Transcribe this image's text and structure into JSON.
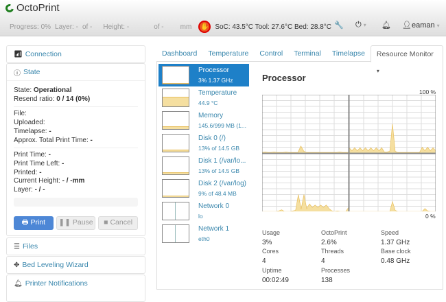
{
  "navbar": {
    "brand": "OctoPrint",
    "progress": "Progress: 0%",
    "layer": "Layer: -",
    "layer_of": "of -",
    "height": "Height: -",
    "height_of": "of -",
    "height_unit": "mm",
    "temps": "SoC: 43.5°C Tool: 27.6°C Bed: 28.8°C",
    "user": "eaman",
    "icons": [
      "stop-hand-icon",
      "wrench-icon",
      "power-icon",
      "bell-icon",
      "user-icon"
    ]
  },
  "sidebar": {
    "connection": "Connection",
    "state": "State",
    "state_label": "State: ",
    "state_value": "Operational",
    "resend_label": "Resend ratio: ",
    "resend_value": "0 / 14 (0%)",
    "file": "File:",
    "uploaded": "Uploaded:",
    "timelapse_label": "Timelapse: ",
    "timelapse_value": "-",
    "approx_label": "Approx. Total Print Time: ",
    "approx_value": "-",
    "print_time_label": "Print Time: ",
    "print_time_value": "-",
    "left_label": "Print Time Left: ",
    "left_value": "-",
    "printed_label": "Printed: ",
    "printed_value": "-",
    "cur_height_label": "Current Height: ",
    "cur_height_value": "- / -mm",
    "layer_label": "Layer: ",
    "layer_value": "- / -",
    "progress": 0,
    "print": "Print",
    "pause": "Pause",
    "cancel": "Cancel",
    "files": "Files",
    "bed": "Bed Leveling Wizard",
    "notifications": "Printer Notifications"
  },
  "tabs": [
    "Dashboard",
    "Temperature",
    "Control",
    "Terminal",
    "Timelapse",
    "Resource Monitor"
  ],
  "resources": [
    {
      "name": "Processor",
      "detail": "3% 1.37 GHz",
      "fill": 3
    },
    {
      "name": "Temperature",
      "detail": "44.9 °C",
      "fill": 55
    },
    {
      "name": "Memory",
      "detail": "145.6/999 MB (1...",
      "fill": 15
    },
    {
      "name": "Disk 0 (/)",
      "detail": "13% of 14.5 GB",
      "fill": 13
    },
    {
      "name": "Disk 1 (/var/lo...",
      "detail": "13% of 14.5 GB",
      "fill": 13
    },
    {
      "name": "Disk 2 (/var/log)",
      "detail": "9% of 48.4 MB",
      "fill": 9
    },
    {
      "name": "Network 0",
      "detail": "lo",
      "fill": 0
    },
    {
      "name": "Network 1",
      "detail": "eth0",
      "fill": 0
    }
  ],
  "main": {
    "title": "Processor",
    "max": "100 %",
    "min": "0 %",
    "cores": [
      [
        1,
        2,
        1,
        1,
        2,
        1,
        1,
        1,
        2,
        1,
        1,
        1,
        1,
        12,
        3,
        1,
        1,
        1,
        1,
        1,
        1,
        1,
        1,
        1,
        1,
        1,
        2,
        1,
        1,
        1
      ],
      [
        9,
        4,
        9,
        4,
        9,
        4,
        9,
        4,
        9,
        4,
        9,
        4,
        9,
        2,
        2,
        3,
        50,
        3,
        1,
        1,
        1,
        1,
        1,
        1,
        1,
        1,
        1,
        10,
        4,
        10,
        4,
        9,
        4
      ],
      [
        1,
        1,
        1,
        1,
        1,
        1,
        2,
        4,
        1,
        1,
        1,
        2,
        3,
        30,
        5,
        30,
        6,
        14,
        8,
        12,
        8,
        12,
        8,
        12,
        6,
        2,
        1,
        2,
        1,
        1,
        1,
        8
      ],
      [
        1,
        1,
        1,
        1,
        1,
        1,
        1,
        1,
        1,
        1,
        1,
        1,
        1,
        1,
        1,
        1,
        18,
        3,
        1,
        1,
        1,
        1,
        1,
        1,
        1,
        1,
        1,
        1,
        6,
        2,
        1,
        1,
        1
      ]
    ]
  },
  "stats": [
    {
      "label": "Usage",
      "value": "3%"
    },
    {
      "label": "OctoPrint",
      "value": "2.6%"
    },
    {
      "label": "Speed",
      "value": "1.37 GHz"
    },
    {
      "label": "Cores",
      "value": "4"
    },
    {
      "label": "Threads",
      "value": "4"
    },
    {
      "label": "Base clock",
      "value": "0.48 GHz"
    },
    {
      "label": "Uptime",
      "value": "00:02:49"
    },
    {
      "label": "Processes",
      "value": "138"
    }
  ],
  "colors": {
    "accent": "#1e80c8",
    "link": "#3a87ad",
    "graph_fill": "#f5dfa0",
    "graph_line": "#e8c060"
  }
}
